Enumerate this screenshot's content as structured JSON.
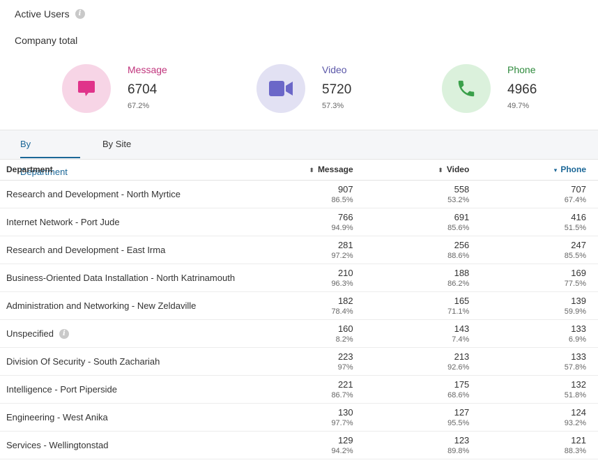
{
  "header": {
    "title": "Active Users",
    "info_icon": "i",
    "subtitle": "Company total"
  },
  "stats": [
    {
      "label": "Message",
      "value": "6704",
      "pct": "67.2%",
      "color": "#c0347c",
      "bg": "#f7d5e6",
      "icon": "chat-bubble-icon",
      "icon_color": "#e0338a"
    },
    {
      "label": "Video",
      "value": "5720",
      "pct": "57.3%",
      "color": "#5b57a8",
      "bg": "#e2e1f3",
      "icon": "video-camera-icon",
      "icon_color": "#6b67c8"
    },
    {
      "label": "Phone",
      "value": "4966",
      "pct": "49.7%",
      "color": "#2e8a3c",
      "bg": "#dbf1dc",
      "icon": "phone-icon",
      "icon_color": "#3aa04a"
    }
  ],
  "tabs": [
    {
      "label": "By Department",
      "active": true
    },
    {
      "label": "By Site",
      "active": false
    }
  ],
  "table": {
    "columns": {
      "department": "Department",
      "message": "Message",
      "video": "Video",
      "phone": "Phone"
    },
    "sort_column": "Phone",
    "rows": [
      {
        "name": "Research and Development - North Myrtice",
        "message": "907",
        "message_pct": "86.5%",
        "video": "558",
        "video_pct": "53.2%",
        "phone": "707",
        "phone_pct": "67.4%"
      },
      {
        "name": "Internet Network - Port Jude",
        "message": "766",
        "message_pct": "94.9%",
        "video": "691",
        "video_pct": "85.6%",
        "phone": "416",
        "phone_pct": "51.5%"
      },
      {
        "name": "Research and Development - East Irma",
        "message": "281",
        "message_pct": "97.2%",
        "video": "256",
        "video_pct": "88.6%",
        "phone": "247",
        "phone_pct": "85.5%"
      },
      {
        "name": "Business-Oriented Data Installation - North Katrinamouth",
        "message": "210",
        "message_pct": "96.3%",
        "video": "188",
        "video_pct": "86.2%",
        "phone": "169",
        "phone_pct": "77.5%"
      },
      {
        "name": "Administration and Networking - New Zeldaville",
        "message": "182",
        "message_pct": "78.4%",
        "video": "165",
        "video_pct": "71.1%",
        "phone": "139",
        "phone_pct": "59.9%"
      },
      {
        "name": "Unspecified",
        "info": true,
        "message": "160",
        "message_pct": "8.2%",
        "video": "143",
        "video_pct": "7.4%",
        "phone": "133",
        "phone_pct": "6.9%"
      },
      {
        "name": "Division Of Security - South Zachariah",
        "message": "223",
        "message_pct": "97%",
        "video": "213",
        "video_pct": "92.6%",
        "phone": "133",
        "phone_pct": "57.8%"
      },
      {
        "name": "Intelligence - Port Piperside",
        "message": "221",
        "message_pct": "86.7%",
        "video": "175",
        "video_pct": "68.6%",
        "phone": "132",
        "phone_pct": "51.8%"
      },
      {
        "name": "Engineering - West Anika",
        "message": "130",
        "message_pct": "97.7%",
        "video": "127",
        "video_pct": "95.5%",
        "phone": "124",
        "phone_pct": "93.2%"
      },
      {
        "name": "Services - Wellingtonstad",
        "message": "129",
        "message_pct": "94.2%",
        "video": "123",
        "video_pct": "89.8%",
        "phone": "121",
        "phone_pct": "88.3%"
      }
    ]
  }
}
